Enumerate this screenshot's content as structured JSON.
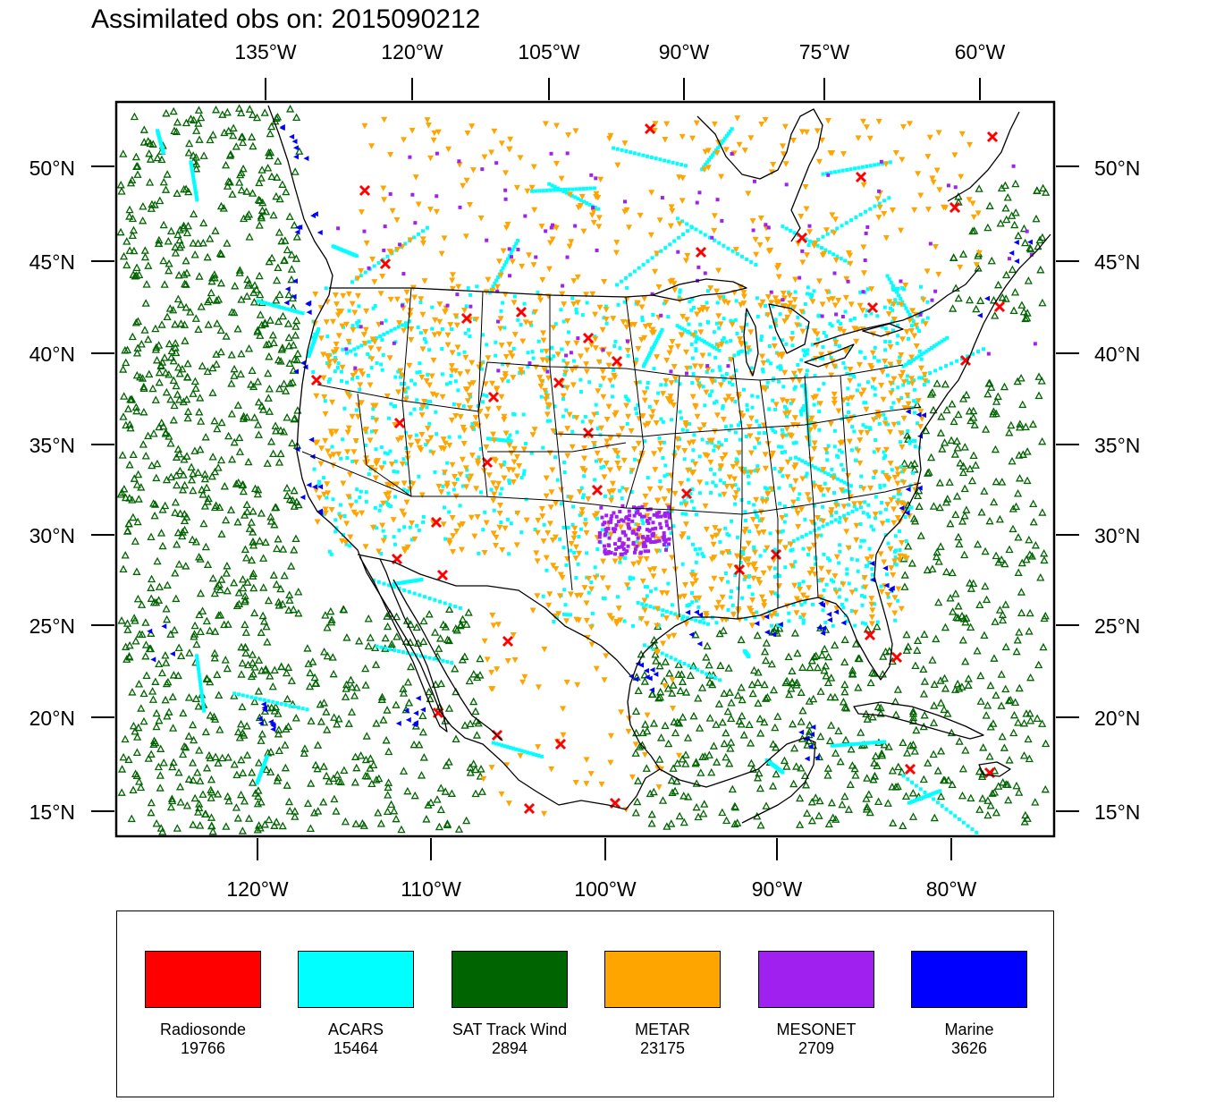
{
  "title": "Assimilated obs on: 2015090212",
  "map": {
    "top_lon_labels": [
      "135°W",
      "120°W",
      "105°W",
      "90°W",
      "75°W",
      "60°W"
    ],
    "bottom_lon_labels": [
      "120°W",
      "110°W",
      "100°W",
      "90°W",
      "80°W"
    ],
    "left_lat_labels": [
      "50°N",
      "45°N",
      "40°N",
      "35°N",
      "30°N",
      "25°N",
      "20°N",
      "15°N"
    ],
    "right_lat_labels": [
      "50°N",
      "45°N",
      "40°N",
      "35°N",
      "30°N",
      "25°N",
      "20°N",
      "15°N"
    ]
  },
  "legend": [
    {
      "name": "Radiosonde",
      "count": "19766",
      "color": "#ff0000"
    },
    {
      "name": "ACARS",
      "count": "15464",
      "color": "#00ffff"
    },
    {
      "name": "SAT Track Wind",
      "count": "2894",
      "color": "#006400"
    },
    {
      "name": "METAR",
      "count": "23175",
      "color": "#ffa500"
    },
    {
      "name": "MESONET",
      "count": "2709",
      "color": "#a020f0"
    },
    {
      "name": "Marine",
      "count": "3626",
      "color": "#0000ff"
    }
  ]
}
